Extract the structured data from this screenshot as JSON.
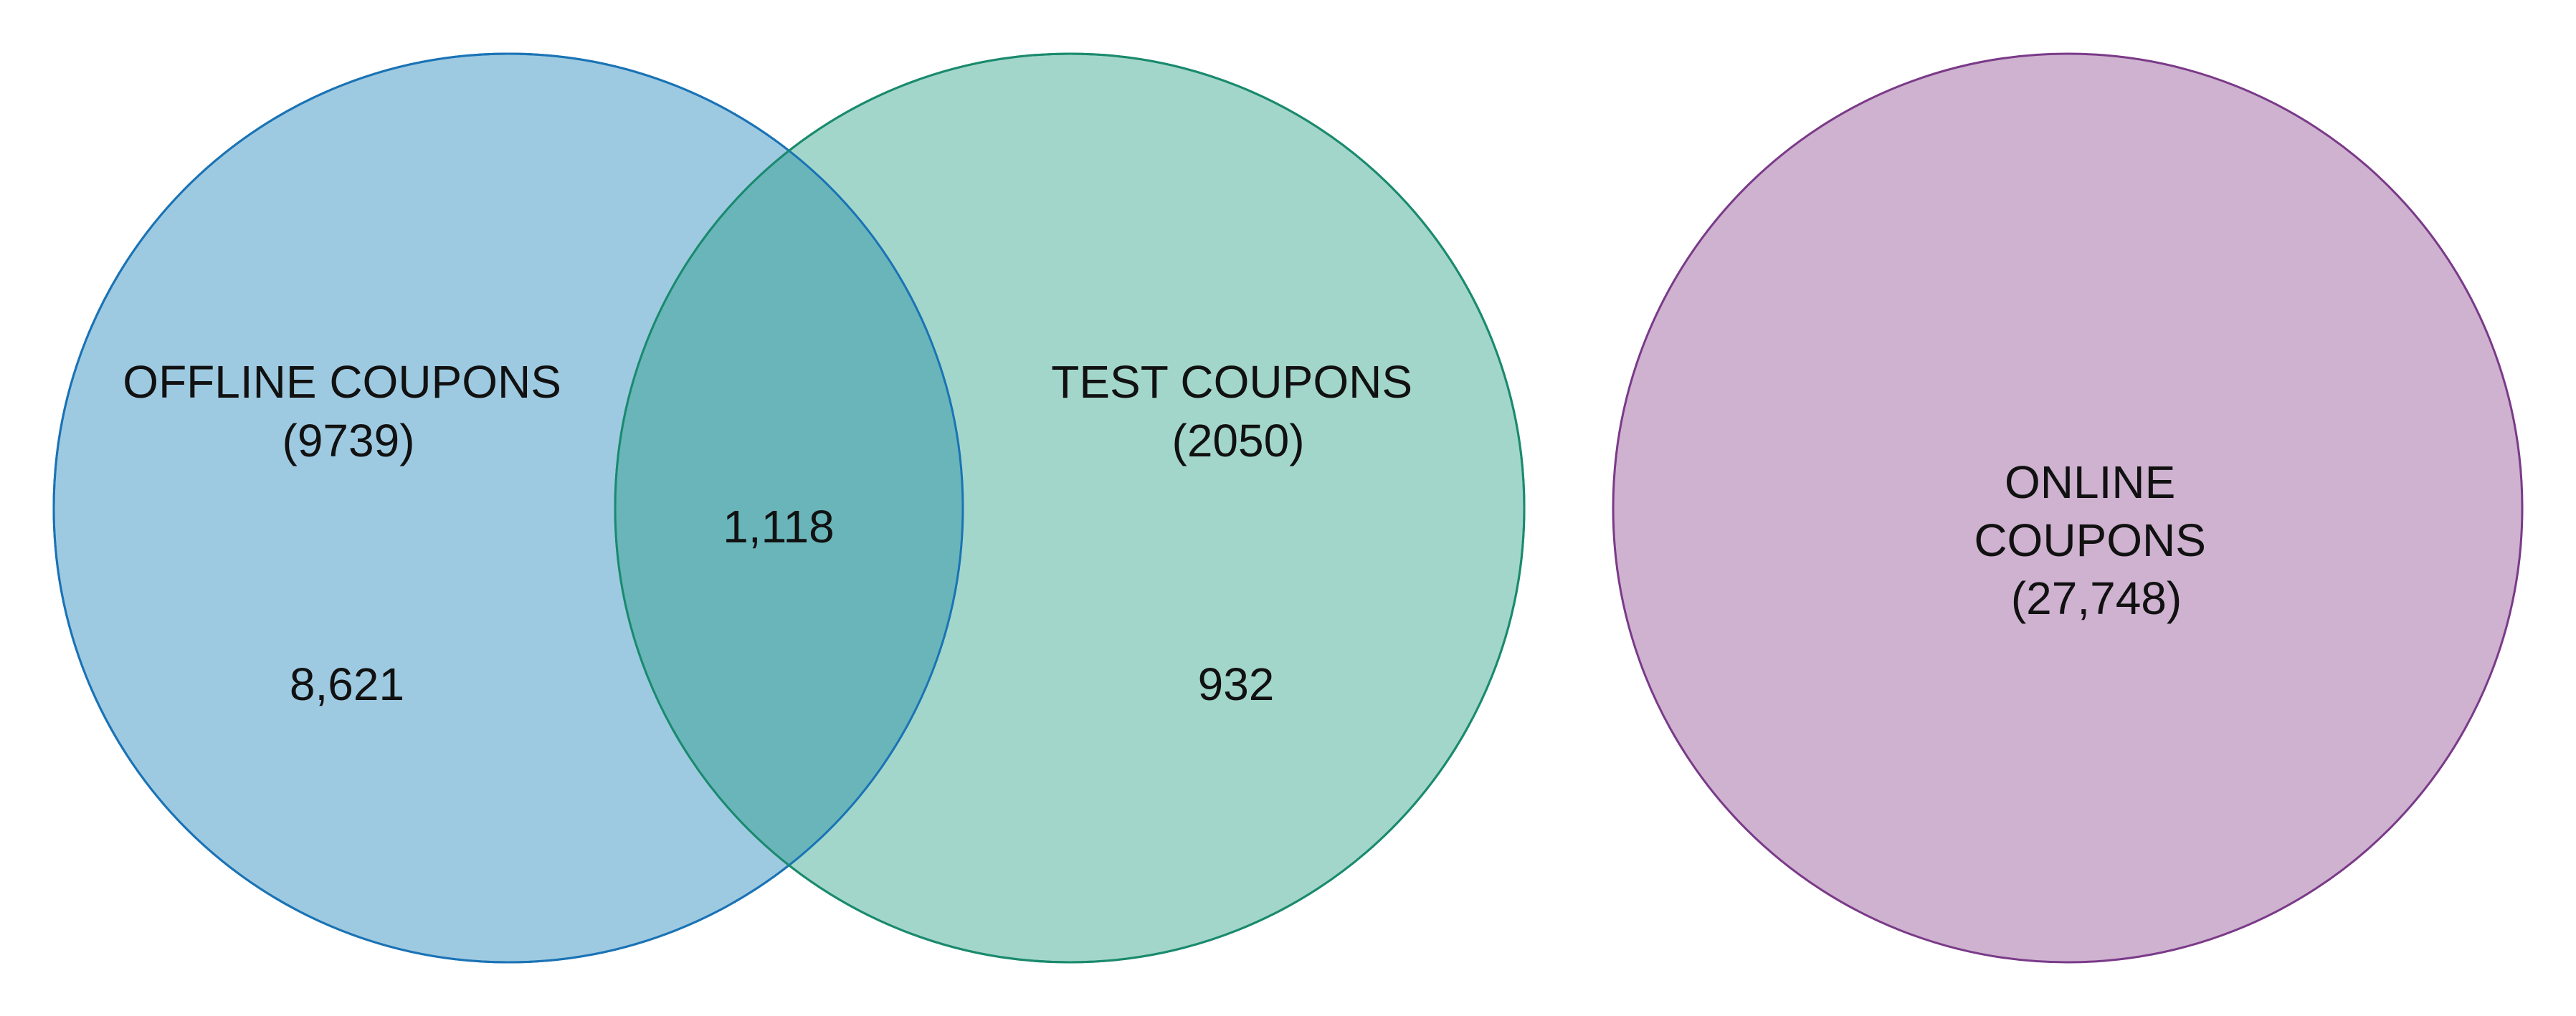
{
  "diagram": {
    "type": "venn",
    "sets": [
      {
        "id": "offline",
        "label_lines": [
          "OFFLINE COUPONS",
          "(9739)"
        ],
        "fill": "#9ecae1",
        "stroke": "#1a73b5"
      },
      {
        "id": "test",
        "label_lines": [
          "TEST COUPONS",
          "(2050)"
        ],
        "fill": "#a3d6ca",
        "stroke": "#1a8a6e"
      },
      {
        "id": "online",
        "label_lines": [
          "ONLINE",
          "COUPONS",
          "(27,748)"
        ],
        "fill": "#ceb2d0",
        "stroke": "#7a3a88"
      }
    ],
    "overlap": {
      "sets": [
        "offline",
        "test"
      ],
      "value": "1,118",
      "fill": "#69b5ba"
    },
    "regions": {
      "offline_only": "8,621",
      "test_only": "932"
    }
  }
}
